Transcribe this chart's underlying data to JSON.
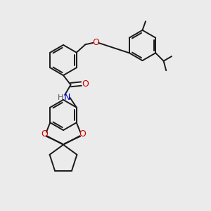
{
  "bg_color": "#ebebeb",
  "bond_color": "#1a1a1a",
  "oxygen_color": "#cc0000",
  "nitrogen_color": "#0000cc",
  "hydrogen_color": "#555555",
  "line_width": 1.4,
  "figsize": [
    3.0,
    3.0
  ],
  "dpi": 100,
  "xlim": [
    0,
    10
  ],
  "ylim": [
    0,
    10
  ]
}
